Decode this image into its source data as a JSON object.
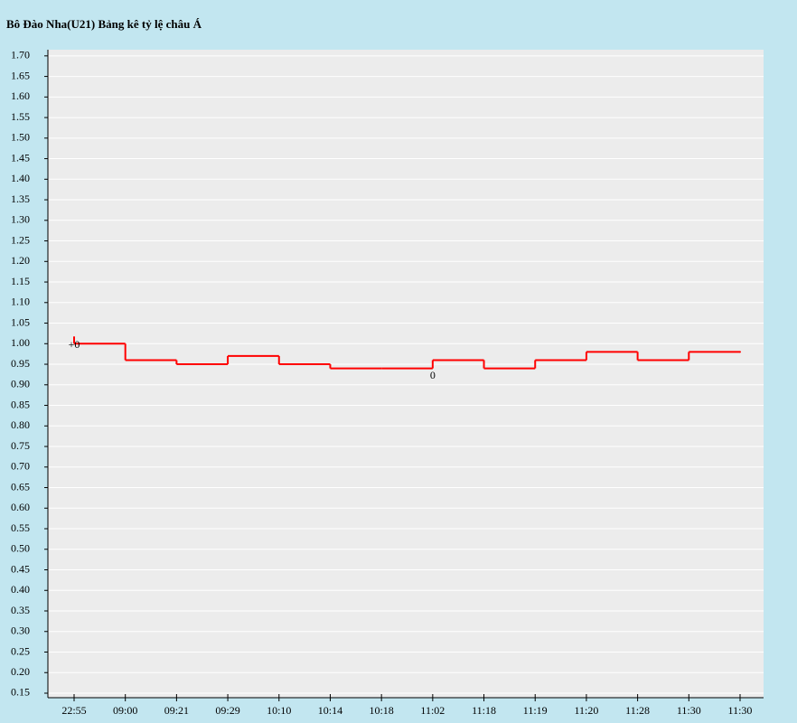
{
  "chart_data": {
    "type": "step-line",
    "title": "Bô Đào Nha(U21) Bảng kê tỷ lệ châu Á",
    "categories": [
      "22:55",
      "09:00",
      "09:21",
      "09:29",
      "10:10",
      "10:14",
      "10:18",
      "11:02",
      "11:18",
      "11:19",
      "11:20",
      "11:28",
      "11:30",
      "11:30"
    ],
    "values": [
      1.0,
      0.96,
      0.95,
      0.97,
      0.95,
      0.94,
      0.94,
      0.96,
      0.94,
      0.96,
      0.98,
      0.96,
      0.98,
      0.98
    ],
    "color": "#ff0000",
    "annotations": [
      {
        "text": "+0",
        "index": 0
      },
      {
        "text": "0",
        "index": 7
      }
    ],
    "ylim": [
      0.139,
      1.715
    ],
    "yticks": [
      {
        "value": 0.15,
        "label": "0.15"
      },
      {
        "value": 0.2,
        "label": "0.20"
      },
      {
        "value": 0.25,
        "label": "0.25"
      },
      {
        "value": 0.3,
        "label": "0.30"
      },
      {
        "value": 0.35,
        "label": "0.35"
      },
      {
        "value": 0.4,
        "label": "0.40"
      },
      {
        "value": 0.45,
        "label": "0.45"
      },
      {
        "value": 0.5,
        "label": "0.50"
      },
      {
        "value": 0.55,
        "label": "0.55"
      },
      {
        "value": 0.6,
        "label": "0.60"
      },
      {
        "value": 0.65,
        "label": "0.65"
      },
      {
        "value": 0.7,
        "label": "0.70"
      },
      {
        "value": 0.75,
        "label": "0.75"
      },
      {
        "value": 0.8,
        "label": "0.80"
      },
      {
        "value": 0.85,
        "label": "0.85"
      },
      {
        "value": 0.9,
        "label": "0.90"
      },
      {
        "value": 0.95,
        "label": "0.95"
      },
      {
        "value": 1.0,
        "label": "1.00"
      },
      {
        "value": 1.05,
        "label": "1.05"
      },
      {
        "value": 1.1,
        "label": "1.10"
      },
      {
        "value": 1.15,
        "label": "1.15"
      },
      {
        "value": 1.2,
        "label": "1.20"
      },
      {
        "value": 1.25,
        "label": "1.25"
      },
      {
        "value": 1.3,
        "label": "1.30"
      },
      {
        "value": 1.35,
        "label": "1.35"
      },
      {
        "value": 1.4,
        "label": "1.40"
      },
      {
        "value": 1.45,
        "label": "1.45"
      },
      {
        "value": 1.5,
        "label": "1.50"
      },
      {
        "value": 1.55,
        "label": "1.55"
      },
      {
        "value": 1.6,
        "label": "1.60"
      },
      {
        "value": 1.65,
        "label": "1.65"
      },
      {
        "value": 1.7,
        "label": "1.70"
      }
    ],
    "grid": true
  }
}
